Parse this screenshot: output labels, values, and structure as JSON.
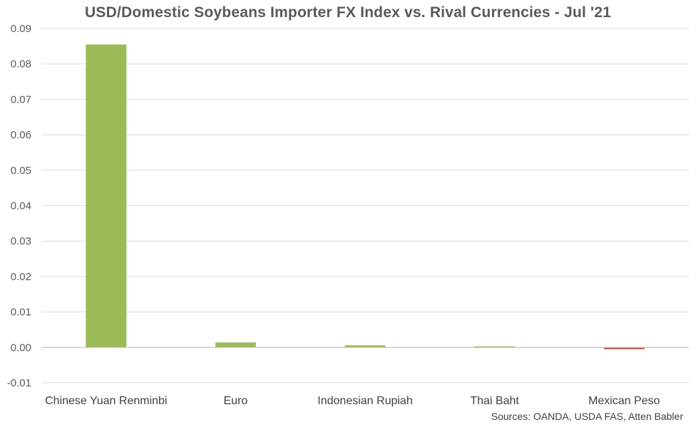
{
  "chart_data": {
    "type": "bar",
    "title": "USD/Domestic Soybeans Importer FX Index vs. Rival Currencies - Jul '21",
    "xlabel": "",
    "ylabel": "",
    "categories": [
      "Chinese Yuan Renminbi",
      "Euro",
      "Indonesian Rupiah",
      "Thai Baht",
      "Mexican Peso"
    ],
    "values": [
      0.0855,
      0.0014,
      0.0006,
      0.0003,
      -0.0005
    ],
    "ylim": [
      -0.01,
      0.09
    ],
    "yticks": [
      "-0.01",
      "0.00",
      "0.01",
      "0.02",
      "0.03",
      "0.04",
      "0.05",
      "0.06",
      "0.07",
      "0.08",
      "0.09"
    ],
    "grid": true,
    "colors": {
      "positive": "#9BBB59",
      "negative": "#C0504D",
      "grid": "#D9D9D9",
      "axis": "#BFBFBF"
    },
    "source": "Sources: OANDA, USDA FAS, Atten Babler"
  }
}
